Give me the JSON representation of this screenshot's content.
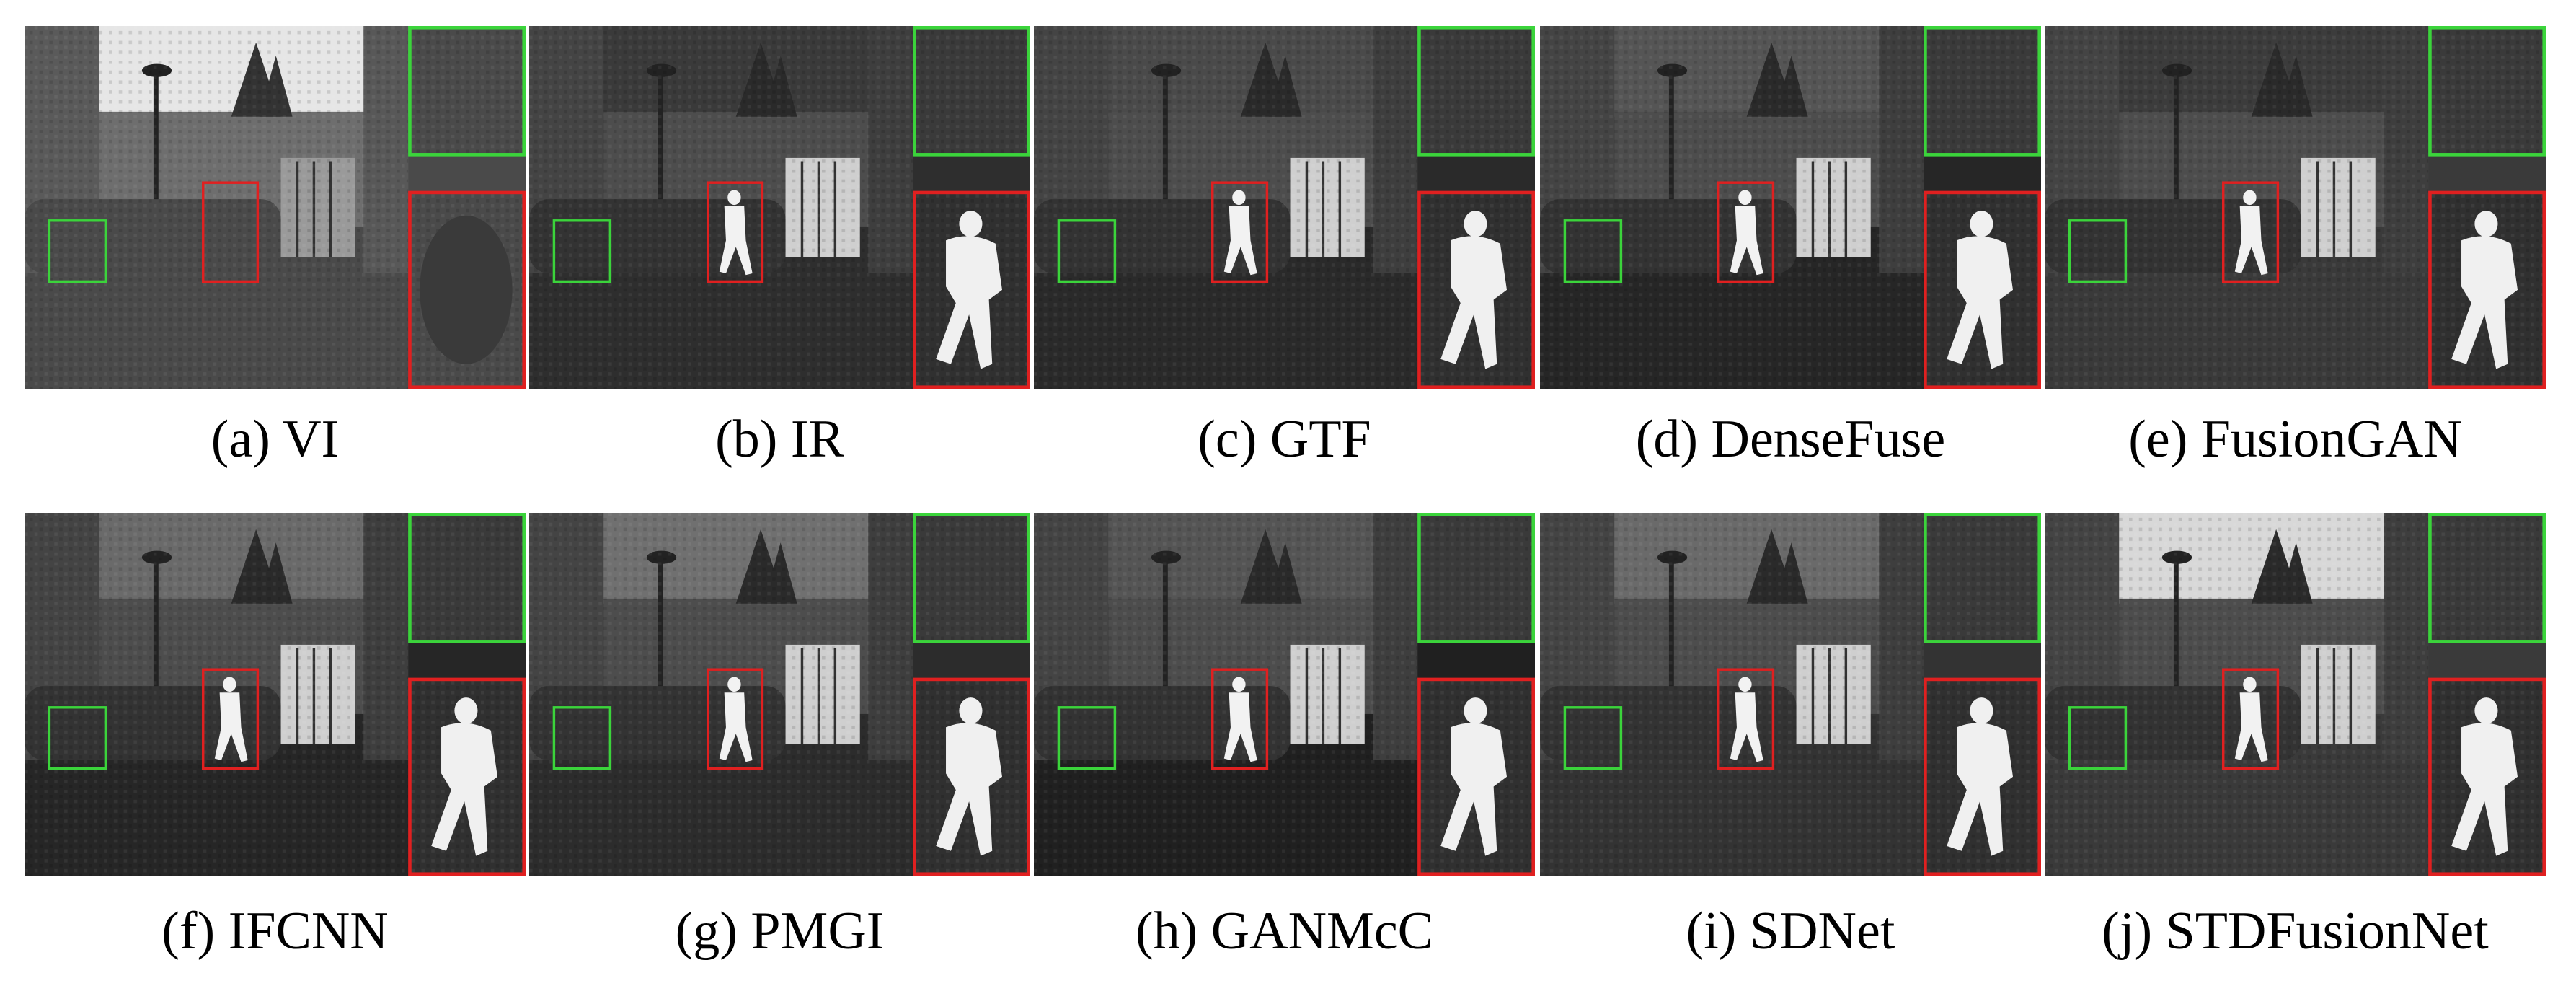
{
  "figure": {
    "panels": [
      {
        "caption": "(a) VI"
      },
      {
        "caption": "(b) IR"
      },
      {
        "caption": "(c) GTF"
      },
      {
        "caption": "(d) DenseFuse"
      },
      {
        "caption": "(e) FusionGAN"
      },
      {
        "caption": "(f) IFCNN"
      },
      {
        "caption": "(g) PMGI"
      },
      {
        "caption": "(h) GANMcC"
      },
      {
        "caption": "(i) SDNet"
      },
      {
        "caption": "(j) STDFusionNet"
      }
    ]
  }
}
